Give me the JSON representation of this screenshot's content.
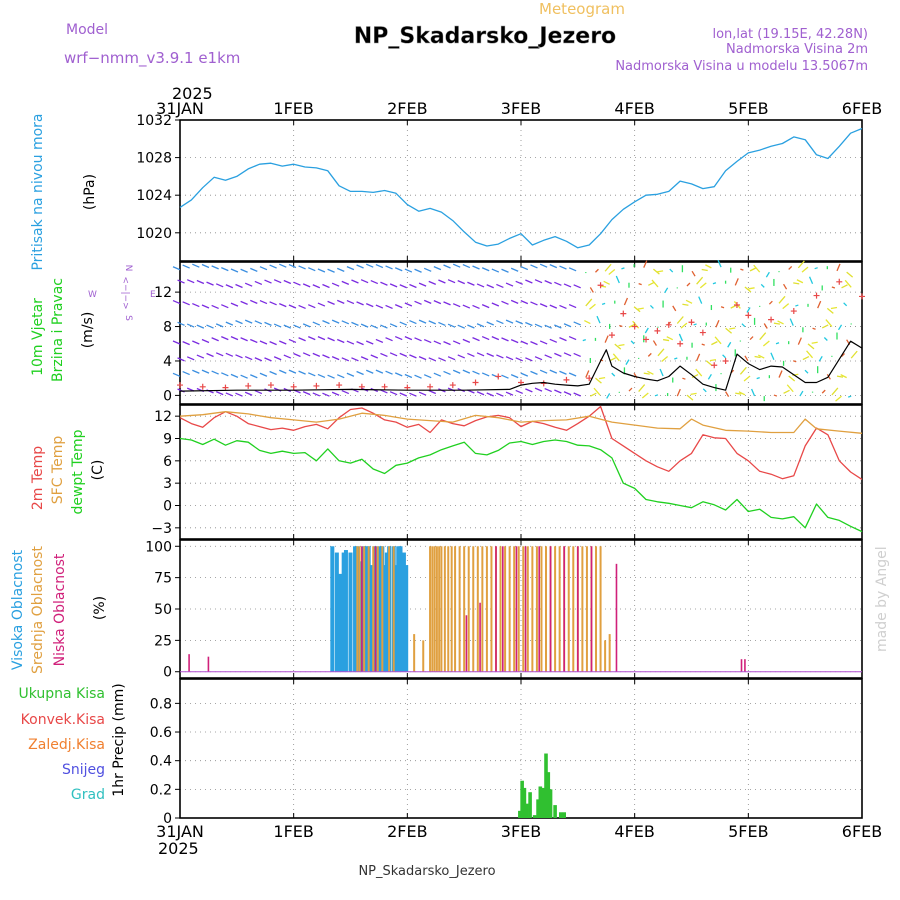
{
  "header": {
    "model_label": "Model",
    "model_name": "wrf−nmm_v3.9.1  e1km",
    "meteogram_label": "Meteogram",
    "station_title": "NP_Skadarsko_Jezero",
    "location": "lon,lat (19.15E, 42.28N)",
    "elevation": "Nadmorska Visina 2m",
    "model_elevation": "Nadmorska Visina u modelu 13.5067m",
    "footer_station": "NP_Skadarsko_Jezero",
    "credit": "made by Angel",
    "year_top": "2025",
    "year_bottom": "2025"
  },
  "colors": {
    "pressure": "#2aa0e0",
    "temp2m": "#e84848",
    "sfc_temp": "#e0a040",
    "dewpt": "#20d020",
    "wind_speed": "#000000",
    "gust": "#e84848",
    "high_cloud": "#2aa0e0",
    "mid_cloud": "#e0a040",
    "low_cloud": "#d0207a",
    "precip_total": "#30c030",
    "precip_conv": "#e84848",
    "precip_snowfall": "#f08030",
    "precip_snow": "#5050e0",
    "precip_hail": "#30c0c0",
    "header_purple": "#a060d0",
    "header_gold": "#f0c060",
    "grid": "#000000"
  },
  "chart_data": [
    {
      "type": "line",
      "panel": "pressure",
      "ylabel_colored": "Pritisak na nivou mora",
      "ylabel_unit": "(hPa)",
      "x_tick_labels": [
        "31JAN",
        "1FEB",
        "2FEB",
        "3FEB",
        "4FEB",
        "5FEB",
        "6FEB"
      ],
      "x_range_days": [
        0,
        6
      ],
      "ylim": [
        1017,
        1032
      ],
      "yticks": [
        1020,
        1024,
        1028,
        1032
      ],
      "grid": true,
      "series": [
        {
          "name": "Pritisak na nivou mora",
          "x": [
            0,
            0.1,
            0.2,
            0.3,
            0.4,
            0.5,
            0.6,
            0.7,
            0.8,
            0.9,
            1.0,
            1.1,
            1.2,
            1.3,
            1.4,
            1.5,
            1.6,
            1.7,
            1.8,
            1.9,
            2.0,
            2.1,
            2.2,
            2.3,
            2.4,
            2.5,
            2.6,
            2.7,
            2.8,
            2.9,
            3.0,
            3.1,
            3.2,
            3.3,
            3.4,
            3.5,
            3.6,
            3.7,
            3.8,
            3.9,
            4.0,
            4.1,
            4.2,
            4.3,
            4.4,
            4.5,
            4.6,
            4.7,
            4.8,
            4.9,
            5.0,
            5.1,
            5.2,
            5.3,
            5.4,
            5.5,
            5.6,
            5.7,
            5.8,
            5.9,
            6.0
          ],
          "values": [
            1022.7,
            1023.5,
            1024.8,
            1025.9,
            1025.6,
            1026.0,
            1026.8,
            1027.3,
            1027.4,
            1027.1,
            1027.3,
            1027.0,
            1026.9,
            1026.6,
            1025.0,
            1024.4,
            1024.4,
            1024.3,
            1024.5,
            1024.2,
            1023.0,
            1022.3,
            1022.6,
            1022.2,
            1021.3,
            1020.1,
            1019.0,
            1018.6,
            1018.8,
            1019.4,
            1019.9,
            1018.7,
            1019.2,
            1019.6,
            1019.1,
            1018.4,
            1018.7,
            1019.9,
            1021.4,
            1022.5,
            1023.3,
            1024.0,
            1024.1,
            1024.4,
            1025.5,
            1025.2,
            1024.7,
            1024.9,
            1026.6,
            1027.6,
            1028.5,
            1028.8,
            1029.2,
            1029.5,
            1030.2,
            1029.9,
            1028.3,
            1027.9,
            1029.2,
            1030.6,
            1031.1
          ]
        }
      ]
    },
    {
      "type": "line",
      "panel": "wind",
      "ylabel_colored": [
        "10m Vjetar",
        "Brzina i Pravac"
      ],
      "ylabel_unit": "(m/s)",
      "compass_labels": [
        "N",
        "<−|−>",
        "W",
        "E",
        "S"
      ],
      "x_range_days": [
        0,
        6
      ],
      "ylim": [
        -1,
        15.5
      ],
      "yticks": [
        0,
        4,
        8,
        12
      ],
      "grid": true,
      "series": [
        {
          "name": "wind speed",
          "x": [
            0,
            0.5,
            1.0,
            1.5,
            2.0,
            2.5,
            2.9,
            3.0,
            3.1,
            3.2,
            3.3,
            3.4,
            3.5,
            3.6,
            3.7,
            3.75,
            3.8,
            3.9,
            4.0,
            4.1,
            4.2,
            4.3,
            4.4,
            4.5,
            4.6,
            4.7,
            4.8,
            4.9,
            5.0,
            5.1,
            5.2,
            5.3,
            5.4,
            5.5,
            5.6,
            5.7,
            5.8,
            5.9,
            6.0
          ],
          "values": [
            0.5,
            0.6,
            0.6,
            0.7,
            0.6,
            0.6,
            0.7,
            1.2,
            1.4,
            1.5,
            1.3,
            1.2,
            1.1,
            1.3,
            4.0,
            5.3,
            3.4,
            2.6,
            2.2,
            1.9,
            1.7,
            2.2,
            3.4,
            2.4,
            1.3,
            0.9,
            0.6,
            4.8,
            3.7,
            3.0,
            3.4,
            3.3,
            2.4,
            1.5,
            1.5,
            2.1,
            4.2,
            6.3,
            5.5
          ]
        },
        {
          "name": "gust",
          "x": [
            0.0,
            0.2,
            0.4,
            0.6,
            0.8,
            1.0,
            1.2,
            1.4,
            1.6,
            1.8,
            2.0,
            2.2,
            2.4,
            2.6,
            2.8,
            3.0,
            3.2,
            3.4,
            3.6,
            3.7,
            3.8,
            3.9,
            4.0,
            4.1,
            4.2,
            4.3,
            4.4,
            4.5,
            4.6,
            4.7,
            4.8,
            4.9,
            5.0,
            5.2,
            5.4,
            5.6,
            5.8,
            6.0
          ],
          "values": [
            1.2,
            1.0,
            0.9,
            1.1,
            1.2,
            1.0,
            1.1,
            1.2,
            1.0,
            1.0,
            0.9,
            1.0,
            1.2,
            1.5,
            2.2,
            1.5,
            1.4,
            1.8,
            2.0,
            12.8,
            7.0,
            9.5,
            8.0,
            6.5,
            7.5,
            8.2,
            6.0,
            8.5,
            7.3,
            3.5,
            4.0,
            10.5,
            9.3,
            8.8,
            9.8,
            11.6,
            13.2,
            11.5
          ]
        }
      ]
    },
    {
      "type": "line",
      "panel": "temperature",
      "ylabel_colored": [
        "2m Temp",
        "SFC Temp",
        "dewpt Temp"
      ],
      "ylabel_unit": "(C)",
      "x_range_days": [
        0,
        6
      ],
      "ylim": [
        -4.5,
        13.5
      ],
      "yticks": [
        -3,
        0,
        3,
        6,
        9,
        12
      ],
      "grid": true,
      "series": [
        {
          "name": "2m Temp",
          "x": [
            0,
            0.1,
            0.2,
            0.3,
            0.4,
            0.5,
            0.6,
            0.7,
            0.8,
            0.9,
            1.0,
            1.1,
            1.2,
            1.3,
            1.4,
            1.5,
            1.6,
            1.7,
            1.8,
            1.9,
            2.0,
            2.1,
            2.2,
            2.3,
            2.4,
            2.5,
            2.6,
            2.7,
            2.8,
            2.9,
            3.0,
            3.1,
            3.2,
            3.3,
            3.4,
            3.5,
            3.6,
            3.7,
            3.8,
            3.9,
            4.0,
            4.1,
            4.2,
            4.3,
            4.4,
            4.5,
            4.6,
            4.7,
            4.8,
            4.9,
            5.0,
            5.1,
            5.2,
            5.3,
            5.4,
            5.5,
            5.6,
            5.7,
            5.8,
            5.9,
            6.0
          ],
          "values": [
            11.8,
            11.0,
            10.5,
            11.8,
            12.6,
            12.0,
            11.0,
            10.6,
            10.2,
            10.4,
            10.1,
            10.6,
            10.9,
            10.3,
            11.8,
            12.9,
            13.1,
            12.4,
            11.5,
            11.2,
            10.5,
            10.9,
            9.8,
            11.5,
            11.0,
            10.7,
            11.4,
            11.9,
            12.1,
            11.8,
            10.6,
            11.3,
            11.0,
            10.5,
            10.1,
            11.0,
            12.0,
            13.3,
            9.0,
            8.0,
            7.0,
            6.0,
            5.2,
            4.6,
            6.0,
            7.0,
            9.5,
            9.1,
            9.0,
            7.0,
            6.0,
            4.6,
            4.2,
            3.6,
            4.0,
            8.0,
            10.4,
            9.5,
            6.0,
            4.5,
            3.5
          ]
        },
        {
          "name": "SFC Temp",
          "x": [
            0,
            0.2,
            0.4,
            0.6,
            0.8,
            1.0,
            1.2,
            1.4,
            1.6,
            1.8,
            2.0,
            2.2,
            2.4,
            2.6,
            2.8,
            3.0,
            3.2,
            3.4,
            3.6,
            3.8,
            4.0,
            4.2,
            4.4,
            4.5,
            4.6,
            4.8,
            5.0,
            5.2,
            5.4,
            5.5,
            5.6,
            5.8,
            6.0
          ],
          "values": [
            12.0,
            12.2,
            12.6,
            12.3,
            11.8,
            11.5,
            11.2,
            11.6,
            12.4,
            12.1,
            11.6,
            11.4,
            11.2,
            12.1,
            11.8,
            11.2,
            11.4,
            11.5,
            12.0,
            11.2,
            10.8,
            10.4,
            10.3,
            11.6,
            10.8,
            10.1,
            10.0,
            9.8,
            9.8,
            11.6,
            10.3,
            10.0,
            9.7
          ]
        },
        {
          "name": "dewpt Temp",
          "x": [
            0,
            0.1,
            0.2,
            0.3,
            0.4,
            0.5,
            0.6,
            0.7,
            0.8,
            0.9,
            1.0,
            1.1,
            1.2,
            1.3,
            1.4,
            1.5,
            1.6,
            1.7,
            1.8,
            1.9,
            2.0,
            2.1,
            2.2,
            2.3,
            2.4,
            2.5,
            2.6,
            2.7,
            2.8,
            2.9,
            3.0,
            3.1,
            3.2,
            3.3,
            3.4,
            3.5,
            3.6,
            3.7,
            3.8,
            3.9,
            4.0,
            4.1,
            4.2,
            4.3,
            4.4,
            4.5,
            4.6,
            4.7,
            4.8,
            4.9,
            5.0,
            5.1,
            5.2,
            5.3,
            5.4,
            5.5,
            5.6,
            5.7,
            5.8,
            5.9,
            6.0
          ],
          "values": [
            9.0,
            8.8,
            8.2,
            8.9,
            8.1,
            8.7,
            8.5,
            7.4,
            7.0,
            7.3,
            7.0,
            7.1,
            6.0,
            7.6,
            6.0,
            5.7,
            6.2,
            4.9,
            4.3,
            5.4,
            5.7,
            6.4,
            6.8,
            7.5,
            8.0,
            8.5,
            7.0,
            6.8,
            7.4,
            8.4,
            8.6,
            8.2,
            8.6,
            8.8,
            8.6,
            8.1,
            8.0,
            7.5,
            6.4,
            3.0,
            2.3,
            0.8,
            0.5,
            0.3,
            0.0,
            -0.3,
            0.5,
            0.1,
            -0.6,
            0.8,
            -0.8,
            -0.5,
            -1.6,
            -1.8,
            -1.5,
            -3.0,
            0.2,
            -1.6,
            -2.0,
            -2.8,
            -3.5
          ]
        }
      ]
    },
    {
      "type": "bar",
      "panel": "clouds",
      "ylabel_colored": [
        "Visoka Oblacnost",
        "Srednja Oblacnost",
        "Niska Oblacnost"
      ],
      "ylabel_unit": "(%)",
      "x_range_days": [
        0,
        6
      ],
      "ylim": [
        -5,
        105
      ],
      "yticks": [
        0,
        25,
        50,
        75,
        100
      ],
      "grid": true,
      "series": [
        {
          "name": "Visoka Oblacnost",
          "x": [
            1.34,
            1.38,
            1.41,
            1.44,
            1.46,
            1.5,
            1.54,
            1.56,
            1.6,
            1.62,
            1.64,
            1.66,
            1.68,
            1.72,
            1.74,
            1.76,
            1.78,
            1.8,
            1.82,
            1.84,
            1.88,
            1.9,
            1.92,
            1.94,
            1.97,
            1.99
          ],
          "values": [
            100,
            95,
            78,
            95,
            97,
            95,
            100,
            100,
            88,
            100,
            100,
            100,
            85,
            100,
            88,
            100,
            100,
            85,
            95,
            100,
            100,
            85,
            100,
            100,
            95,
            85
          ]
        },
        {
          "name": "Srednja Oblacnost",
          "x": [
            1.56,
            1.58,
            1.62,
            1.66,
            1.7,
            1.74,
            1.78,
            1.84,
            1.88,
            2.06,
            2.14,
            2.2,
            2.22,
            2.24,
            2.26,
            2.28,
            2.3,
            2.33,
            2.36,
            2.39,
            2.42,
            2.46,
            2.5,
            2.54,
            2.58,
            2.62,
            2.66,
            2.7,
            2.74,
            2.78,
            2.82,
            2.86,
            2.9,
            2.94,
            2.98,
            3.02,
            3.06,
            3.1,
            3.14,
            3.18,
            3.22,
            3.26,
            3.3,
            3.34,
            3.38,
            3.42,
            3.46,
            3.5,
            3.54,
            3.58,
            3.62,
            3.66,
            3.7,
            3.74,
            3.78
          ],
          "values": [
            100,
            100,
            100,
            100,
            100,
            100,
            100,
            100,
            100,
            30,
            25,
            100,
            100,
            100,
            100,
            100,
            100,
            100,
            100,
            100,
            100,
            100,
            100,
            100,
            100,
            100,
            100,
            100,
            100,
            100,
            100,
            100,
            100,
            100,
            100,
            100,
            100,
            100,
            100,
            100,
            100,
            100,
            100,
            100,
            100,
            100,
            100,
            100,
            100,
            100,
            100,
            100,
            100,
            25,
            30
          ]
        },
        {
          "name": "Niska Oblacnost",
          "x": [
            0.08,
            0.25,
            1.6,
            1.72,
            2.52,
            2.64,
            2.78,
            2.84,
            2.96,
            3.04,
            3.16,
            3.26,
            3.38,
            3.5,
            3.62,
            3.84,
            4.94,
            4.97
          ],
          "values": [
            14,
            12,
            100,
            100,
            45,
            55,
            100,
            100,
            100,
            100,
            100,
            100,
            100,
            100,
            100,
            86,
            10,
            10
          ]
        }
      ]
    },
    {
      "type": "bar",
      "panel": "precipitation",
      "legend": [
        "Ukupna Kisa",
        "Konvek.Kisa",
        "Zaledj.Kisa",
        "Snijeg",
        "Grad"
      ],
      "ylabel": "1hr Precip (mm)",
      "x_range_days": [
        0,
        6
      ],
      "ylim": [
        0,
        0.97
      ],
      "yticks": [
        0,
        0.2,
        0.4,
        0.6,
        0.8
      ],
      "grid": true,
      "series": [
        {
          "name": "Ukupna Kisa",
          "x": [
            2.99,
            3.01,
            3.03,
            3.05,
            3.08,
            3.12,
            3.15,
            3.17,
            3.2,
            3.22,
            3.24,
            3.26,
            3.3,
            3.35,
            3.38
          ],
          "values": [
            0.05,
            0.26,
            0.21,
            0.1,
            0.18,
            0.02,
            0.13,
            0.22,
            0.21,
            0.45,
            0.32,
            0.2,
            0.09,
            0.04,
            0.04
          ]
        }
      ]
    }
  ]
}
